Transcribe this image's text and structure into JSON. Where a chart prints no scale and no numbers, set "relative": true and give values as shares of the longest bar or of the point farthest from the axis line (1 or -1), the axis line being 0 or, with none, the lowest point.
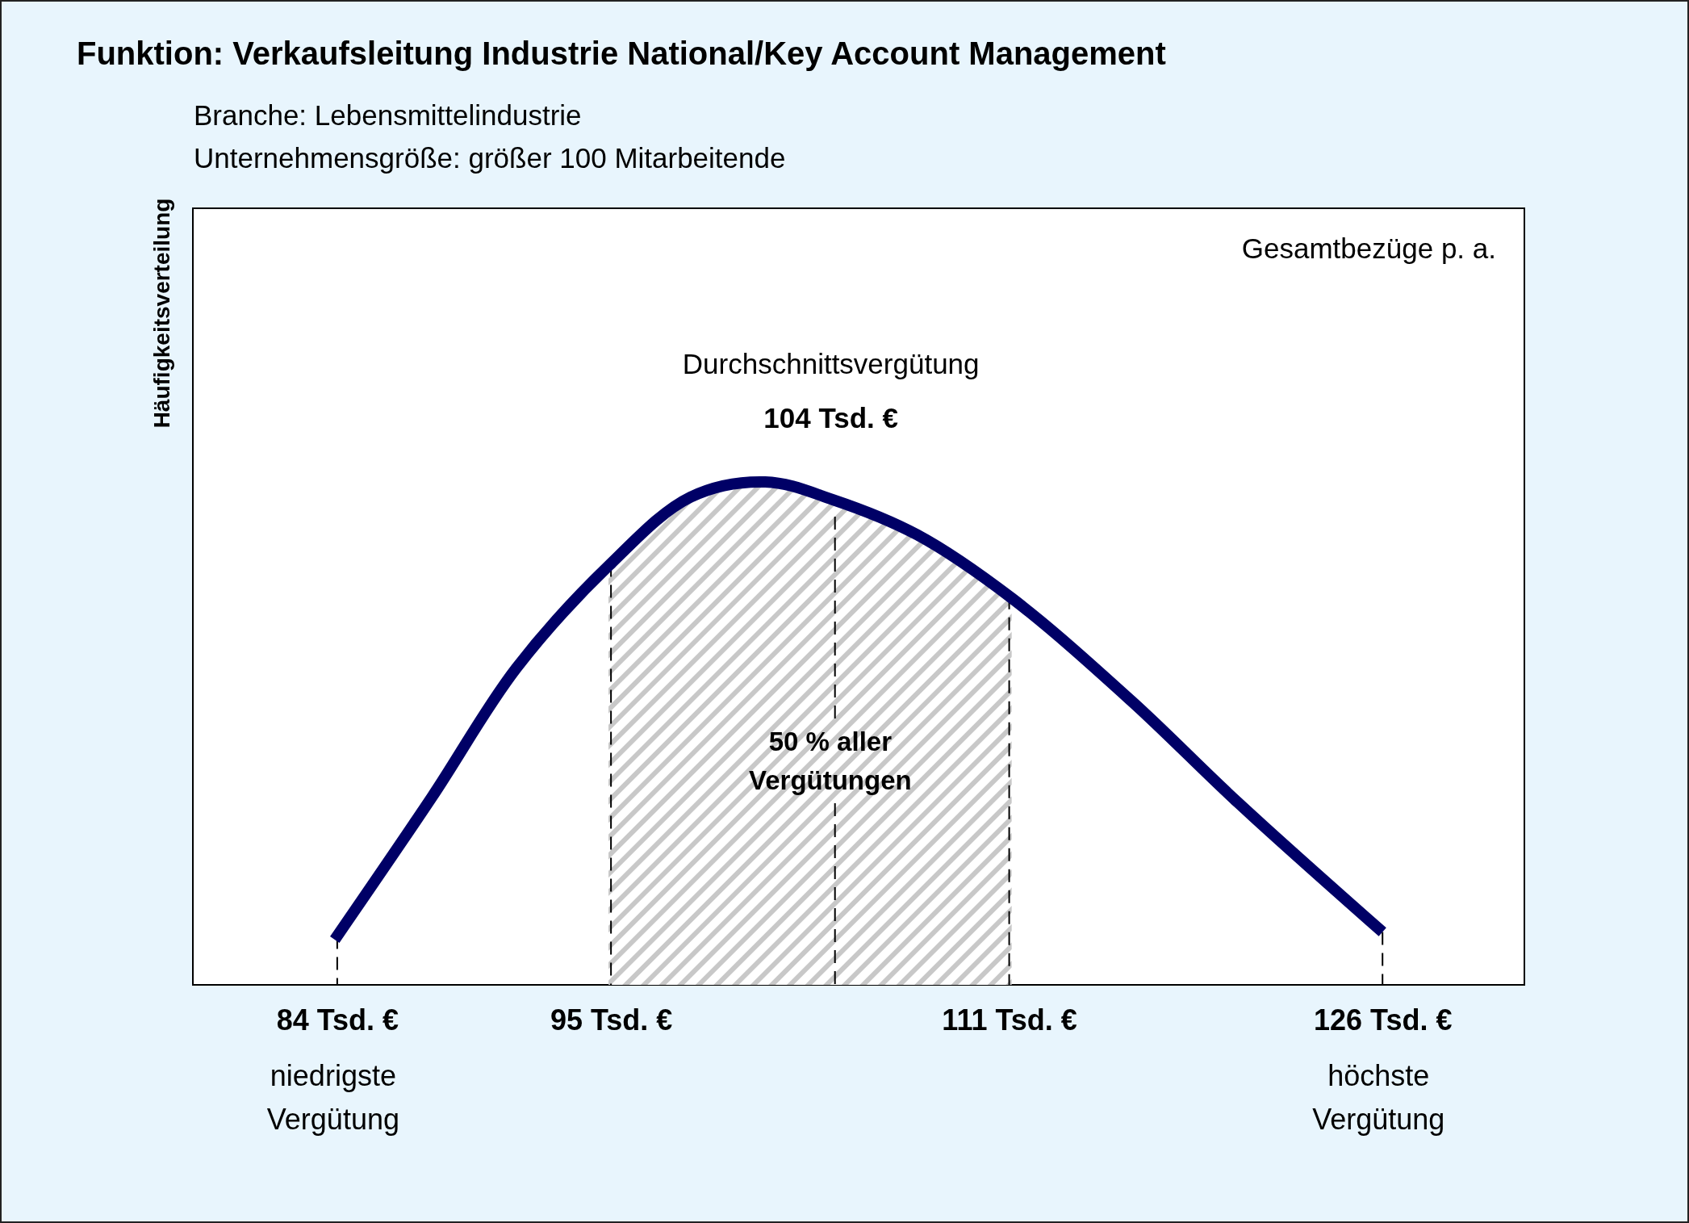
{
  "chart_data": {
    "type": "line",
    "title": "Funktion: Verkaufsleitung Industrie National/Key Account Management",
    "subtitle": "Branche: Lebensmittelindustrie\nUnternehmensgröße: größer 100 Mitarbeitende",
    "ylabel": "Häufigkeitsverteilung",
    "relative": true,
    "x": [
      83.9,
      87.8,
      91.2,
      94.9,
      98.2,
      101.2,
      103.9,
      107.3,
      111.1,
      115.9,
      120.2,
      126
    ],
    "series": [
      {
        "type": "area",
        "color": "#c8c8c8",
        "x": [
          94.9,
          98.2,
          101.2,
          103.9,
          107.3,
          111.1
        ],
        "values": [
          0.833,
          0.97,
          1,
          0.965,
          0.895,
          0.769
        ]
      },
      {
        "color": "#000066",
        "values": [
          0.09,
          0.373,
          0.63,
          0.833,
          0.97,
          1,
          0.965,
          0.895,
          0.769,
          0.565,
          0.362,
          0.105
        ]
      }
    ],
    "xlim": [
      78.2,
      131.7
    ],
    "xticks": [
      {
        "value": 84,
        "label": "84 Tsd. €"
      },
      {
        "value": 95,
        "label": "95 Tsd. €"
      },
      {
        "value": 111,
        "label": "111 Tsd. €"
      },
      {
        "value": 126,
        "label": "126 Tsd. €"
      }
    ],
    "ref_lines": [
      {
        "axis": "x",
        "value": 84,
        "line_style": "dashed"
      },
      {
        "axis": "x",
        "value": 95,
        "line_style": "dashed"
      },
      {
        "axis": "x",
        "value": 104,
        "label": "104 Tsd. €",
        "line_style": "dashed"
      },
      {
        "axis": "x",
        "value": 111,
        "line_style": "dashed"
      },
      {
        "axis": "x",
        "value": 126,
        "line_style": "dashed"
      }
    ],
    "annotations": [
      "Gesamtbezüge p. a.",
      "Durchschnittsvergütung",
      "niedrigste Vergütung",
      "höchste Vergütung",
      "50 % aller Vergütungen"
    ],
    "line_style": "solid"
  }
}
